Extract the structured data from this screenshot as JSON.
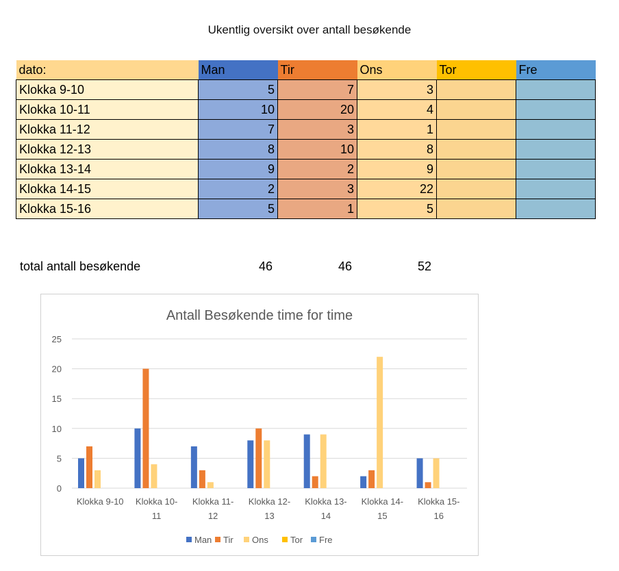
{
  "sheet_title": "Ukentlig oversikt over antall besøkende",
  "table": {
    "header": [
      "dato:",
      "Man",
      "Tir",
      "Ons",
      "Tor",
      "Fre"
    ],
    "header_colors": [
      "#ffd88f",
      "#4472c4",
      "#ed7d31",
      "#ffd27a",
      "#ffc000",
      "#5b9bd5"
    ],
    "cell_colors": [
      "#fff2cc",
      "#8eaadb",
      "#e9a882",
      "#ffd99a",
      "#fbd590",
      "#94bfd4"
    ],
    "rows": [
      {
        "label": "Klokka 9-10",
        "values": [
          "5",
          "7",
          "3",
          "",
          ""
        ]
      },
      {
        "label": "Klokka 10-11",
        "values": [
          "10",
          "20",
          "4",
          "",
          ""
        ]
      },
      {
        "label": "Klokka 11-12",
        "values": [
          "7",
          "3",
          "1",
          "",
          ""
        ]
      },
      {
        "label": "Klokka 12-13",
        "values": [
          "8",
          "10",
          "8",
          "",
          ""
        ]
      },
      {
        "label": "Klokka 13-14",
        "values": [
          "9",
          "2",
          "9",
          "",
          ""
        ]
      },
      {
        "label": "Klokka 14-15",
        "values": [
          "2",
          "3",
          "22",
          "",
          ""
        ]
      },
      {
        "label": "Klokka 15-16",
        "values": [
          "5",
          "1",
          "5",
          "",
          ""
        ]
      }
    ]
  },
  "totals": {
    "label": "total antall besøkende",
    "values": [
      "46",
      "46",
      "52"
    ]
  },
  "chart_data": {
    "type": "bar",
    "title": "Antall Besøkende time for time",
    "categories": [
      "Klokka 9-10",
      "Klokka 10-11",
      "Klokka 11-12",
      "Klokka 12-13",
      "Klokka 13-14",
      "Klokka 14-15",
      "Klokka 15-16"
    ],
    "series": [
      {
        "name": "Man",
        "values": [
          5,
          10,
          7,
          8,
          9,
          2,
          5
        ],
        "color": "#4472c4"
      },
      {
        "name": "Tir",
        "values": [
          7,
          20,
          3,
          10,
          2,
          3,
          1
        ],
        "color": "#ed7d31"
      },
      {
        "name": "Ons",
        "values": [
          3,
          4,
          1,
          8,
          9,
          22,
          5
        ],
        "color": "#ffd27a"
      },
      {
        "name": "Tor",
        "values": [
          0,
          0,
          0,
          0,
          0,
          0,
          0
        ],
        "color": "#ffc000"
      },
      {
        "name": "Fre",
        "values": [
          0,
          0,
          0,
          0,
          0,
          0,
          0
        ],
        "color": "#5b9bd5"
      }
    ],
    "yticks": [
      "0",
      "5",
      "10",
      "15",
      "20",
      "25"
    ],
    "ylim": [
      0,
      25
    ],
    "grid": true,
    "legend": "bottom",
    "xlabel": "",
    "ylabel": ""
  }
}
